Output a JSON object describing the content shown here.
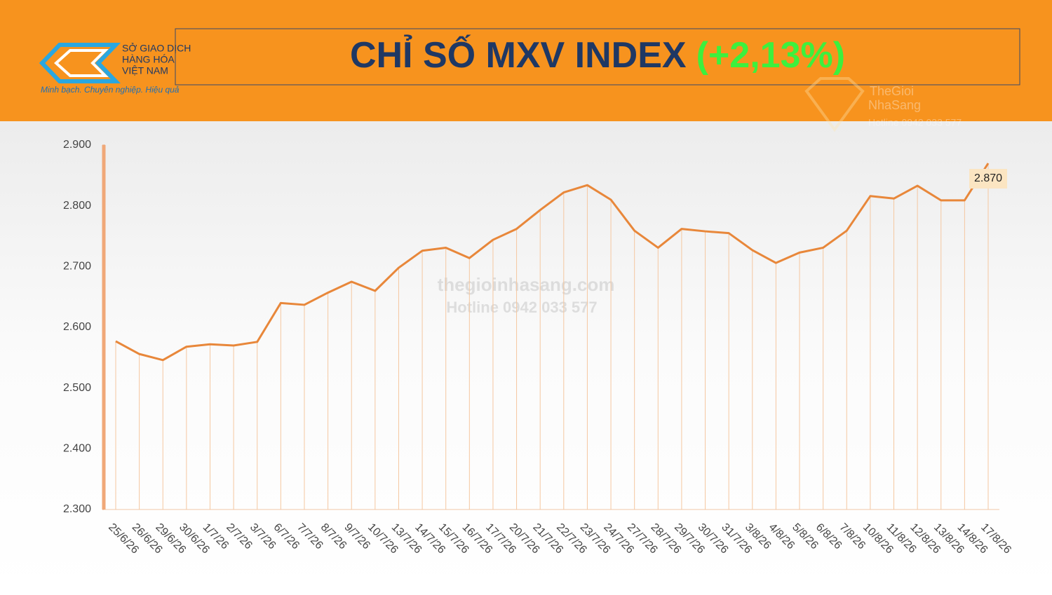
{
  "header": {
    "logo_lines": [
      "SỞ GIAO DỊCH",
      "HÀNG HÓA",
      "VIỆT NAM"
    ],
    "slogan": "Minh bạch. Chuyên nghiệp. Hiệu quả",
    "title": "CHỈ SỐ MXV INDEX",
    "title_change": "(+2,13%)"
  },
  "watermarks": [
    "TheGioi",
    "NhaSang",
    "Hotline 0942 033 577",
    "thegioinhasang.com",
    "Hotline 0942 033 577"
  ],
  "chart_data": {
    "type": "line",
    "categories": [
      "25/6/26",
      "26/6/26",
      "29/6/26",
      "30/6/26",
      "1/7/26",
      "2/7/26",
      "3/7/26",
      "6/7/26",
      "7/7/26",
      "8/7/26",
      "9/7/26",
      "10/7/26",
      "13/7/26",
      "14/7/26",
      "15/7/26",
      "16/7/26",
      "17/7/26",
      "20/7/26",
      "21/7/26",
      "22/7/26",
      "23/7/26",
      "24/7/26",
      "27/7/26",
      "28/7/26",
      "29/7/26",
      "30/7/26",
      "31/7/26",
      "3/8/26",
      "4/8/26",
      "5/8/26",
      "6/8/26",
      "7/8/26",
      "10/8/26",
      "11/8/26",
      "12/8/26",
      "13/8/26",
      "14/8/26",
      "17/8/26"
    ],
    "values": [
      2577,
      2556,
      2546,
      2568,
      2572,
      2570,
      2576,
      2640,
      2637,
      2657,
      2675,
      2660,
      2698,
      2726,
      2731,
      2714,
      2744,
      2762,
      2793,
      2822,
      2834,
      2810,
      2759,
      2731,
      2762,
      2758,
      2755,
      2727,
      2706,
      2723,
      2731,
      2759,
      2816,
      2812,
      2833,
      2809,
      2809,
      2870
    ],
    "value_labels": [
      null,
      null,
      null,
      null,
      null,
      null,
      null,
      null,
      null,
      null,
      null,
      null,
      null,
      null,
      null,
      null,
      null,
      null,
      null,
      null,
      null,
      null,
      null,
      null,
      null,
      null,
      null,
      null,
      null,
      null,
      null,
      null,
      null,
      null,
      null,
      null,
      null,
      "2.870"
    ],
    "color": "#e8873a",
    "ylim": [
      2300,
      2900
    ],
    "yticks": [
      {
        "value": 2300,
        "label": "2.300"
      },
      {
        "value": 2400,
        "label": "2.400"
      },
      {
        "value": 2500,
        "label": "2.500"
      },
      {
        "value": 2600,
        "label": "2.600"
      },
      {
        "value": 2700,
        "label": "2.700"
      },
      {
        "value": 2800,
        "label": "2.800"
      },
      {
        "value": 2900,
        "label": "2.900"
      }
    ]
  }
}
